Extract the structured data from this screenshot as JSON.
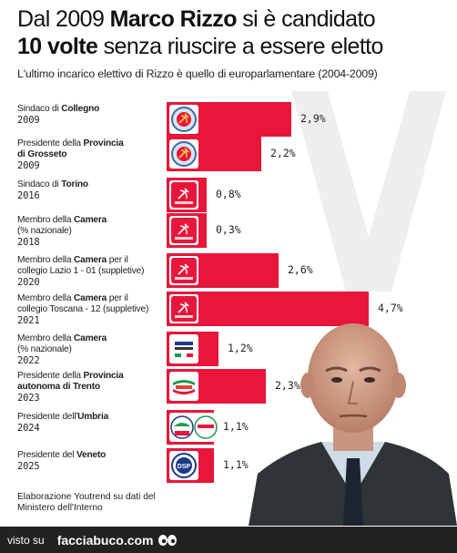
{
  "header": {
    "title_part1": "Dal 2009 ",
    "title_name": "Marco Rizzo",
    "title_part2": " si è candidato",
    "title_bold2": "10 volte",
    "title_part3": " senza riuscire a essere eletto",
    "subtitle": "L'ultimo incarico elettivo di Rizzo è quello di europarlamentare (2004-2009)"
  },
  "rows": [
    {
      "pre": "Sindaco di ",
      "bold": "Collegno",
      "post": "",
      "line2pre": "",
      "line2bold": "",
      "line2post": "",
      "year": "2009",
      "label": "2,9%"
    },
    {
      "pre": "Presidente della ",
      "bold": "Provincia",
      "post": "",
      "line2pre": "",
      "line2bold": "di Grosseto",
      "line2post": "",
      "year": "2009",
      "label": "2,2%"
    },
    {
      "pre": "Sindaco di ",
      "bold": "Torino",
      "post": "",
      "line2pre": "",
      "line2bold": "",
      "line2post": "",
      "year": "2016",
      "label": "0,8%"
    },
    {
      "pre": "Membro della ",
      "bold": "Camera",
      "post": "",
      "line2pre": "(% nazionale)",
      "line2bold": "",
      "line2post": "",
      "year": "2018",
      "label": "0,3%"
    },
    {
      "pre": "Membro della ",
      "bold": "Camera",
      "post": " per il",
      "line2pre": "collegio Lazio 1 - 01 (suppletive)",
      "line2bold": "",
      "line2post": "",
      "year": "2020",
      "label": "2,6%"
    },
    {
      "pre": "Membro della ",
      "bold": "Camera",
      "post": " per il",
      "line2pre": "collegio Toscana - 12 (suppletive)",
      "line2bold": "",
      "line2post": "",
      "year": "2021",
      "label": "4,7%"
    },
    {
      "pre": "Membro della ",
      "bold": "Camera",
      "post": "",
      "line2pre": "(% nazionale)",
      "line2bold": "",
      "line2post": "",
      "year": "2022",
      "label": "1,2%"
    },
    {
      "pre": "Presidente della ",
      "bold": "Provincia",
      "post": "",
      "line2pre": "",
      "line2bold": "autonoma di Trento",
      "line2post": "",
      "year": "2023",
      "label": "2,3%"
    },
    {
      "pre": "Presidente dell'",
      "bold": "Umbria",
      "post": "",
      "line2pre": "",
      "line2bold": "",
      "line2post": "",
      "year": "2024",
      "label": "1,1%"
    },
    {
      "pre": "Presidente del ",
      "bold": "Veneto",
      "post": "",
      "line2pre": "",
      "line2bold": "",
      "line2post": "",
      "year": "2025",
      "label": "1,1%"
    }
  ],
  "logos": [
    {
      "text": "",
      "icon": "hammer-sickle-round"
    },
    {
      "text": "",
      "icon": "hammer-sickle-round"
    },
    {
      "text": "PARTITO COMUNISTA",
      "icon": "hammer-sickle-square"
    },
    {
      "text": "PARTITO COMUNISTA",
      "icon": "hammer-sickle-square"
    },
    {
      "text": "",
      "icon": "hammer-sickle-square"
    },
    {
      "text": "",
      "icon": "hammer-sickle-square"
    },
    {
      "text": "ITALIA SOVRANA E POPOLARE",
      "icon": "italia-sovrana-logo"
    },
    {
      "text": "SOVRANISMO POPOLARE",
      "icon": "flag-wave-logo"
    },
    {
      "text": "RIZZO",
      "icon": "double-logo"
    },
    {
      "text": "DSP",
      "icon": "dsp-logo"
    }
  ],
  "footnote": "Elaborazione Youtrend su dati del Ministero dell'Interno",
  "footer": {
    "visto": "visto su",
    "site": "facciabuco.com"
  },
  "colors": {
    "bar": "#e8163a",
    "footer_bg": "#222222"
  },
  "chart_data": {
    "type": "bar",
    "orientation": "horizontal",
    "title": "Dal 2009 Marco Rizzo si è candidato 10 volte senza riuscire a essere eletto",
    "subtitle": "L'ultimo incarico elettivo di Rizzo è quello di europarlamentare (2004-2009)",
    "categories": [
      "Sindaco di Collegno 2009",
      "Presidente della Provincia di Grosseto 2009",
      "Sindaco di Torino 2016",
      "Membro della Camera (% nazionale) 2018",
      "Membro della Camera per il collegio Lazio 1 - 01 (suppletive) 2020",
      "Membro della Camera per il collegio Toscana - 12 (suppletive) 2021",
      "Membro della Camera (% nazionale) 2022",
      "Presidente della Provincia autonoma di Trento 2023",
      "Presidente dell'Umbria 2024",
      "Presidente del Veneto 2025"
    ],
    "values": [
      2.9,
      2.2,
      0.8,
      0.3,
      2.6,
      4.7,
      1.2,
      2.3,
      1.1,
      1.1
    ],
    "xlim": [
      0,
      4.7
    ],
    "grid": false,
    "legend": "none"
  }
}
